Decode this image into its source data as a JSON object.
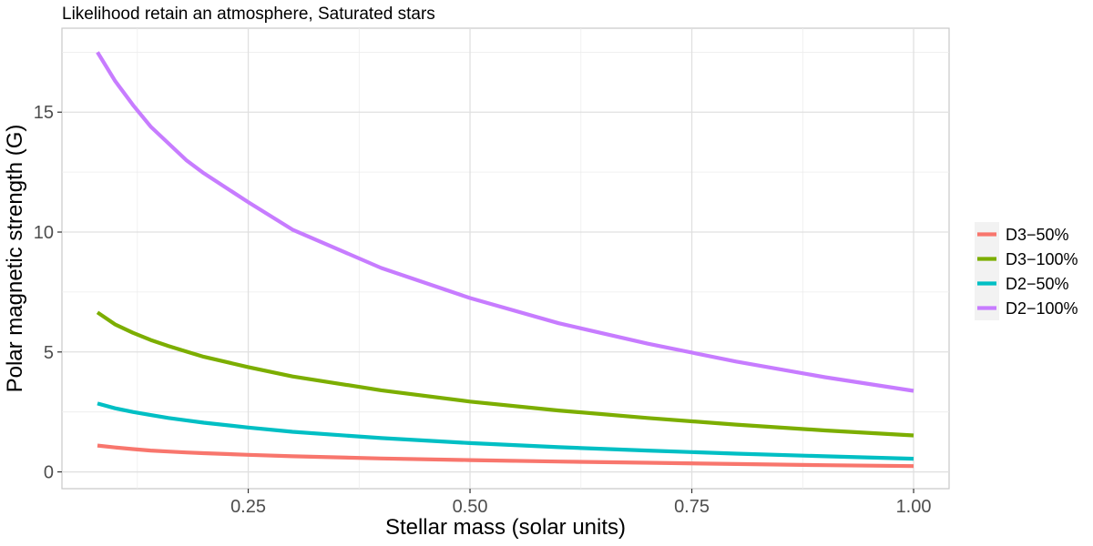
{
  "chart_data": {
    "type": "line",
    "title": "Likelihood retain an atmosphere, Saturated stars",
    "xlabel": "Stellar mass (solar units)",
    "ylabel": "Polar magnetic strength (G)",
    "xlim": [
      0.04,
      1.04
    ],
    "ylim": [
      -0.7,
      18.5
    ],
    "x_ticks": [
      0.25,
      0.5,
      0.75,
      1.0
    ],
    "x_tick_labels": [
      "0.25",
      "0.50",
      "0.75",
      "1.00"
    ],
    "y_ticks": [
      0,
      5,
      10,
      15
    ],
    "y_tick_labels": [
      "0",
      "5",
      "10",
      "15"
    ],
    "grid": true,
    "legend_position": "right",
    "x": [
      0.08,
      0.1,
      0.12,
      0.14,
      0.16,
      0.18,
      0.2,
      0.25,
      0.3,
      0.4,
      0.5,
      0.6,
      0.7,
      0.8,
      0.9,
      1.0
    ],
    "series": [
      {
        "name": "D3−50%",
        "color": "#F8766D",
        "values": [
          1.1,
          1.02,
          0.95,
          0.89,
          0.85,
          0.81,
          0.78,
          0.71,
          0.65,
          0.56,
          0.49,
          0.43,
          0.38,
          0.33,
          0.28,
          0.24
        ]
      },
      {
        "name": "D3−100%",
        "color": "#7CAE00",
        "values": [
          6.65,
          6.15,
          5.8,
          5.5,
          5.25,
          5.02,
          4.8,
          4.37,
          3.98,
          3.4,
          2.93,
          2.56,
          2.25,
          1.97,
          1.73,
          1.52
        ]
      },
      {
        "name": "D2−50%",
        "color": "#00BFC4",
        "values": [
          2.85,
          2.65,
          2.5,
          2.37,
          2.25,
          2.15,
          2.05,
          1.85,
          1.67,
          1.41,
          1.2,
          1.03,
          0.89,
          0.76,
          0.65,
          0.55
        ]
      },
      {
        "name": "D2−100%",
        "color": "#C77CFF",
        "values": [
          17.5,
          16.3,
          15.3,
          14.4,
          13.7,
          13.0,
          12.45,
          11.25,
          10.1,
          8.5,
          7.25,
          6.2,
          5.35,
          4.6,
          3.95,
          3.38
        ]
      }
    ]
  }
}
